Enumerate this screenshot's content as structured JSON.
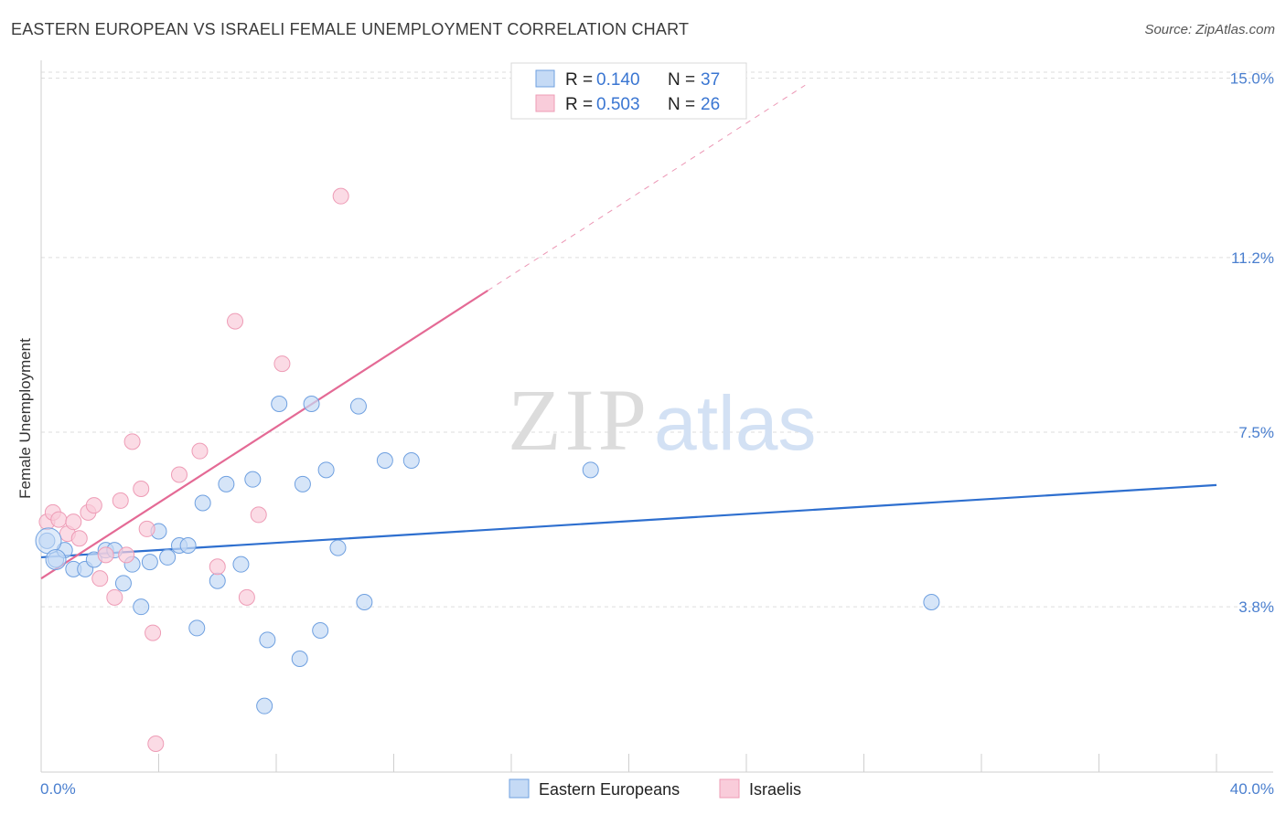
{
  "title": "EASTERN EUROPEAN VS ISRAELI FEMALE UNEMPLOYMENT CORRELATION CHART",
  "source": "Source: ZipAtlas.com",
  "watermark": {
    "zip": "ZIP",
    "atlas": "atlas"
  },
  "legend": {
    "r_label": "R =",
    "n_label": "N =",
    "rows": [
      {
        "r": "0.140",
        "n": "37",
        "color": "#a8c8f0"
      },
      {
        "r": "0.503",
        "n": "26",
        "color": "#f6b8cb"
      }
    ]
  },
  "bottom_legend": [
    "Eastern Europeans",
    "Israelis"
  ],
  "chart_data": {
    "type": "scatter",
    "title": "EASTERN EUROPEAN VS ISRAELI FEMALE UNEMPLOYMENT CORRELATION CHART",
    "xlabel": "",
    "ylabel": "Female Unemployment",
    "xlim": [
      0,
      40
    ],
    "ylim": [
      0.3,
      15.3
    ],
    "x_tick_labels": [
      "0.0%",
      "40.0%"
    ],
    "y_ticks": [
      3.8,
      7.5,
      11.2,
      15.0
    ],
    "y_tick_labels": [
      "3.8%",
      "7.5%",
      "11.2%",
      "15.0%"
    ],
    "grid": true,
    "legend_position": "top-center",
    "series": [
      {
        "name": "Eastern Europeans",
        "color": "#6fa0e0",
        "fill": "#c5daf5",
        "trend": {
          "x": [
            0,
            40
          ],
          "y": [
            4.85,
            6.38
          ],
          "color": "#2e6fcf",
          "dashed_to": null
        },
        "points": [
          [
            0.2,
            5.2
          ],
          [
            0.5,
            4.8
          ],
          [
            0.8,
            5.0
          ],
          [
            1.1,
            4.6
          ],
          [
            1.5,
            4.6
          ],
          [
            1.8,
            4.8
          ],
          [
            2.2,
            5.0
          ],
          [
            2.5,
            5.0
          ],
          [
            2.8,
            4.3
          ],
          [
            3.1,
            4.7
          ],
          [
            3.4,
            3.8
          ],
          [
            3.7,
            4.75
          ],
          [
            4.0,
            5.4
          ],
          [
            4.3,
            4.85
          ],
          [
            4.7,
            5.1
          ],
          [
            5.0,
            5.1
          ],
          [
            5.3,
            3.35
          ],
          [
            5.5,
            6.0
          ],
          [
            6.0,
            4.35
          ],
          [
            6.3,
            6.4
          ],
          [
            6.8,
            4.7
          ],
          [
            7.2,
            6.5
          ],
          [
            7.6,
            1.7
          ],
          [
            7.7,
            3.1
          ],
          [
            8.1,
            8.1
          ],
          [
            8.8,
            2.7
          ],
          [
            8.9,
            6.4
          ],
          [
            9.2,
            8.1
          ],
          [
            9.5,
            3.3
          ],
          [
            9.7,
            6.7
          ],
          [
            10.1,
            5.05
          ],
          [
            10.8,
            8.05
          ],
          [
            11.0,
            3.9
          ],
          [
            11.7,
            6.9
          ],
          [
            12.6,
            6.9
          ],
          [
            18.7,
            6.7
          ],
          [
            30.3,
            3.9
          ]
        ]
      },
      {
        "name": "Israelis",
        "color": "#ee9cb6",
        "fill": "#f9ccda",
        "trend": {
          "x": [
            0,
            15.2
          ],
          "y": [
            4.4,
            10.5
          ],
          "dashed_end": [
            26.0,
            14.85
          ],
          "color": "#e46a95"
        },
        "points": [
          [
            0.2,
            5.6
          ],
          [
            0.4,
            5.8
          ],
          [
            0.6,
            5.65
          ],
          [
            0.9,
            5.35
          ],
          [
            1.1,
            5.6
          ],
          [
            1.3,
            5.25
          ],
          [
            1.6,
            5.8
          ],
          [
            1.8,
            5.95
          ],
          [
            2.0,
            4.4
          ],
          [
            2.2,
            4.9
          ],
          [
            2.5,
            4.0
          ],
          [
            2.7,
            6.05
          ],
          [
            2.9,
            4.9
          ],
          [
            3.1,
            7.3
          ],
          [
            3.4,
            6.3
          ],
          [
            3.6,
            5.45
          ],
          [
            3.8,
            3.25
          ],
          [
            3.9,
            0.9
          ],
          [
            4.7,
            6.6
          ],
          [
            5.4,
            7.1
          ],
          [
            6.0,
            4.65
          ],
          [
            6.6,
            9.85
          ],
          [
            7.0,
            4.0
          ],
          [
            7.4,
            5.75
          ],
          [
            8.2,
            8.95
          ],
          [
            10.2,
            12.5
          ]
        ]
      }
    ]
  }
}
